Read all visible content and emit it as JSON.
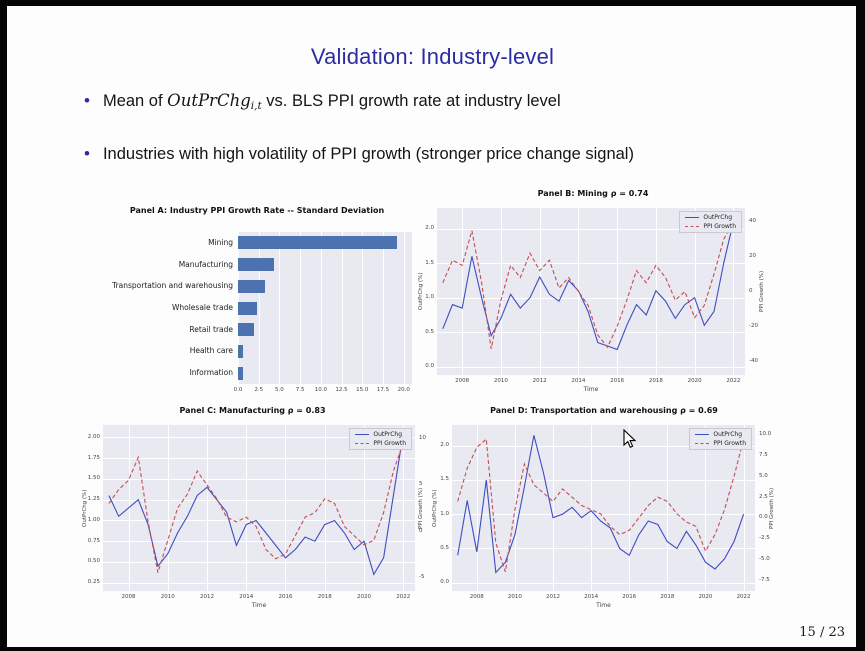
{
  "slide": {
    "title": "Validation: Industry-level",
    "page_number": "15 / 23"
  },
  "bullets": [
    {
      "pre": "Mean of ",
      "math": "OutPrChg",
      "sub": "i,t",
      "post": " vs. BLS PPI growth rate at industry level"
    },
    {
      "text": "Industries with high volatility of PPI growth (stronger price change signal)"
    }
  ],
  "colors": {
    "accent_blue": "#2c2ca2",
    "plot_background": "#e9e9f2",
    "bar_blue": "#4c72b0",
    "line_blue": "#3f4dc0",
    "line_red": "#c44e52"
  },
  "chart_data": [
    {
      "type": "bar",
      "orientation": "horizontal",
      "title": "Panel A: Industry PPI Growth Rate -- Standard Deviation",
      "categories": [
        "Mining",
        "Manufacturing",
        "Transportation and warehousing",
        "Wholesale trade",
        "Retail trade",
        "Health care",
        "Information"
      ],
      "values": [
        19.2,
        4.4,
        3.3,
        2.3,
        1.9,
        0.65,
        0.6
      ],
      "xticks": [
        "0.0",
        "2.5",
        "5.0",
        "7.5",
        "10.0",
        "12.5",
        "15.0",
        "17.5",
        "20.0"
      ],
      "xlim": [
        0,
        21
      ],
      "bar_color": "#4c72b0",
      "grid": true,
      "xlabel": "",
      "ylabel": ""
    },
    {
      "type": "line",
      "title": "Panel B: Mining ρ = 0.74",
      "xlabel": "Time",
      "ylabel_left": "OutPrChg (%)",
      "ylabel_right": "PPI Growth (%)",
      "legend": [
        "OutPrChg",
        "PPI Growth"
      ],
      "legend_position": "upper right",
      "grid": true,
      "x": [
        2007,
        2007.5,
        2008,
        2008.5,
        2009,
        2009.5,
        2010,
        2010.5,
        2011,
        2011.5,
        2012,
        2012.5,
        2013,
        2013.5,
        2014,
        2014.5,
        2015,
        2015.5,
        2016,
        2016.5,
        2017,
        2017.5,
        2018,
        2018.5,
        2019,
        2019.5,
        2020,
        2020.5,
        2021,
        2021.5,
        2022
      ],
      "series": [
        {
          "name": "OutPrChg",
          "axis": "left",
          "color": "#3f4dc0",
          "style": "solid",
          "values": [
            0.55,
            0.9,
            0.85,
            1.6,
            1.0,
            0.45,
            0.7,
            1.05,
            0.85,
            1.0,
            1.3,
            1.05,
            0.95,
            1.25,
            1.1,
            0.8,
            0.35,
            0.3,
            0.25,
            0.6,
            0.9,
            0.75,
            1.1,
            0.95,
            0.7,
            0.9,
            1.0,
            0.6,
            0.8,
            1.5,
            2.1
          ]
        },
        {
          "name": "PPI Growth",
          "axis": "right",
          "color": "#c44e52",
          "style": "dashed",
          "values": [
            5,
            18,
            15,
            35,
            5,
            -33,
            -5,
            15,
            8,
            22,
            12,
            18,
            2,
            8,
            0,
            -8,
            -25,
            -32,
            -20,
            -5,
            12,
            5,
            15,
            8,
            -5,
            0,
            -15,
            -8,
            10,
            30,
            40
          ]
        }
      ],
      "xticks": [
        "2008",
        "2010",
        "2012",
        "2014",
        "2016",
        "2018",
        "2020",
        "2022"
      ],
      "xlim": [
        2006.7,
        2022.6
      ],
      "yticks_left": [
        "2.0",
        "1.5",
        "1.0",
        "0.5",
        "0.0"
      ],
      "ylim_left": [
        -0.12,
        2.3
      ],
      "yticks_right": [
        "40",
        "20",
        "0",
        "-20",
        "-40"
      ],
      "ylim_right": [
        -48,
        48
      ]
    },
    {
      "type": "line",
      "title": "Panel C: Manufacturing ρ = 0.83",
      "xlabel": "Time",
      "ylabel_left": "OutPrChg (%)",
      "ylabel_right": "PPI Growth (%)",
      "legend": [
        "OutPrChg",
        "PPI Growth"
      ],
      "legend_position": "upper right",
      "grid": true,
      "x": [
        2007,
        2007.5,
        2008,
        2008.5,
        2009,
        2009.5,
        2010,
        2010.5,
        2011,
        2011.5,
        2012,
        2012.5,
        2013,
        2013.5,
        2014,
        2014.5,
        2015,
        2015.5,
        2016,
        2016.5,
        2017,
        2017.5,
        2018,
        2018.5,
        2019,
        2019.5,
        2020,
        2020.5,
        2021,
        2021.5,
        2022
      ],
      "series": [
        {
          "name": "OutPrChg",
          "axis": "left",
          "color": "#3f4dc0",
          "style": "solid",
          "values": [
            1.3,
            1.05,
            1.15,
            1.25,
            0.95,
            0.45,
            0.6,
            0.85,
            1.05,
            1.3,
            1.4,
            1.25,
            1.1,
            0.7,
            0.95,
            1.0,
            0.85,
            0.7,
            0.55,
            0.65,
            0.8,
            0.75,
            0.95,
            1.0,
            0.85,
            0.65,
            0.75,
            0.35,
            0.55,
            1.3,
            2.05
          ]
        },
        {
          "name": "PPI Growth",
          "axis": "right",
          "color": "#c44e52",
          "style": "dashed",
          "values": [
            3.0,
            4.5,
            5.5,
            8.0,
            1.0,
            -4.5,
            -1.0,
            2.5,
            4.0,
            6.5,
            5.0,
            3.5,
            1.5,
            1.0,
            1.5,
            0.5,
            -2.0,
            -3.0,
            -2.5,
            -0.5,
            1.5,
            2.0,
            3.5,
            3.0,
            0.5,
            -0.5,
            -1.5,
            -1.0,
            2.0,
            6.5,
            9.5
          ]
        }
      ],
      "xticks": [
        "2008",
        "2010",
        "2012",
        "2014",
        "2016",
        "2018",
        "2020",
        "2022"
      ],
      "xlim": [
        2006.7,
        2022.6
      ],
      "yticks_left": [
        "2.00",
        "1.75",
        "1.50",
        "1.25",
        "1.00",
        "0.75",
        "0.50",
        "0.25"
      ],
      "ylim_left": [
        0.15,
        2.15
      ],
      "yticks_right": [
        "10",
        "5",
        "0",
        "-5"
      ],
      "ylim_right": [
        -6.5,
        11.5
      ]
    },
    {
      "type": "line",
      "title": "Panel D: Transportation and warehousing ρ = 0.69",
      "xlabel": "Time",
      "ylabel_left": "OutPrChg (%)",
      "ylabel_right": "PPI Growth (%)",
      "legend": [
        "OutPrChg",
        "PPI Growth"
      ],
      "legend_position": "upper right",
      "grid": true,
      "x": [
        2007,
        2007.5,
        2008,
        2008.5,
        2009,
        2009.5,
        2010,
        2010.5,
        2011,
        2011.5,
        2012,
        2012.5,
        2013,
        2013.5,
        2014,
        2014.5,
        2015,
        2015.5,
        2016,
        2016.5,
        2017,
        2017.5,
        2018,
        2018.5,
        2019,
        2019.5,
        2020,
        2020.5,
        2021,
        2021.5,
        2022
      ],
      "series": [
        {
          "name": "OutPrChg",
          "axis": "left",
          "color": "#3f4dc0",
          "style": "solid",
          "values": [
            0.4,
            1.2,
            0.45,
            1.5,
            0.15,
            0.3,
            0.7,
            1.4,
            2.15,
            1.6,
            0.95,
            1.0,
            1.1,
            0.95,
            1.05,
            0.9,
            0.8,
            0.5,
            0.4,
            0.7,
            0.9,
            0.85,
            0.6,
            0.5,
            0.75,
            0.55,
            0.3,
            0.2,
            0.35,
            0.6,
            1.0
          ]
        },
        {
          "name": "PPI Growth",
          "axis": "right",
          "color": "#c44e52",
          "style": "dashed",
          "values": [
            2.0,
            6.0,
            8.5,
            9.5,
            -3.0,
            -6.5,
            1.0,
            6.5,
            4.0,
            3.0,
            2.0,
            3.5,
            2.5,
            1.5,
            1.0,
            0.5,
            -1.0,
            -2.0,
            -1.5,
            0.0,
            1.5,
            2.5,
            2.0,
            0.5,
            -0.5,
            -1.0,
            -4.0,
            -2.0,
            1.0,
            5.0,
            9.5
          ]
        }
      ],
      "xticks": [
        "2008",
        "2010",
        "2012",
        "2014",
        "2016",
        "2018",
        "2020",
        "2022"
      ],
      "xlim": [
        2006.7,
        2022.6
      ],
      "yticks_left": [
        "2.0",
        "1.5",
        "1.0",
        "0.5",
        "0.0"
      ],
      "ylim_left": [
        -0.12,
        2.3
      ],
      "yticks_right": [
        "10.0",
        "7.5",
        "5.0",
        "2.5",
        "0.0",
        "-2.5",
        "-5.0",
        "-7.5"
      ],
      "ylim_right": [
        -8.8,
        11.2
      ]
    }
  ]
}
